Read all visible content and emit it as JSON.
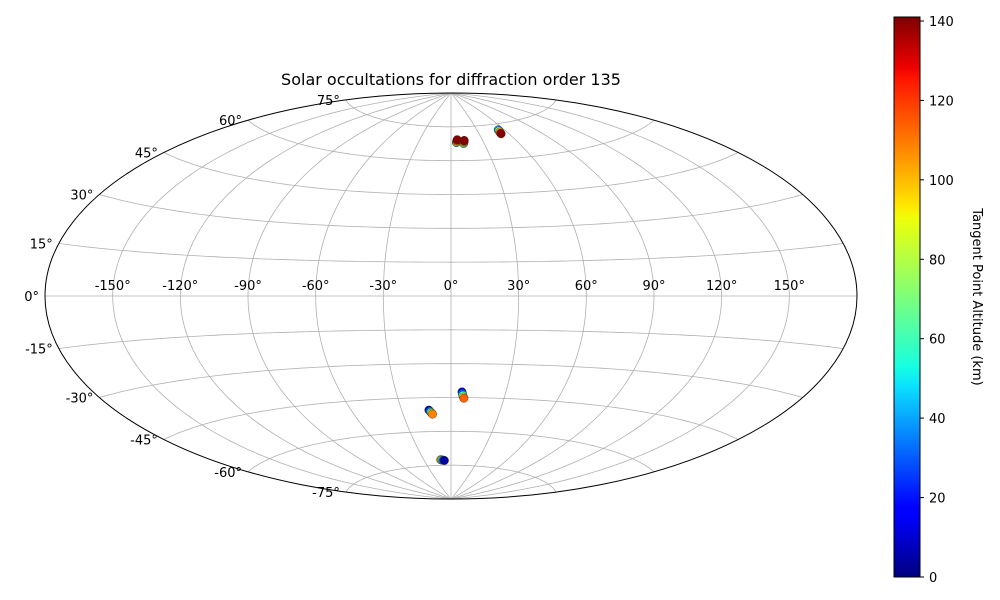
{
  "chart_data": {
    "type": "scatter",
    "projection": "aitoff",
    "title": "Solar occultations for diffraction order 135",
    "grid": true,
    "longitude_ticks": [
      "-150°",
      "-120°",
      "-90°",
      "-60°",
      "-30°",
      "0°",
      "30°",
      "60°",
      "90°",
      "120°",
      "150°"
    ],
    "longitude_tick_values": [
      -150,
      -120,
      -90,
      -60,
      -30,
      0,
      30,
      60,
      90,
      120,
      150
    ],
    "latitude_ticks": [
      "-75°",
      "-60°",
      "-45°",
      "-30°",
      "-15°",
      "0°",
      "15°",
      "30°",
      "45°",
      "60°",
      "75°"
    ],
    "latitude_tick_values": [
      -75,
      -60,
      -45,
      -30,
      -15,
      0,
      15,
      30,
      45,
      60,
      75
    ],
    "colorbar": {
      "label": "Tangent Point Altitude (km)",
      "range": [
        0,
        141
      ],
      "ticks": [
        "0",
        "20",
        "40",
        "60",
        "80",
        "100",
        "120",
        "140"
      ],
      "tick_values": [
        0,
        20,
        40,
        60,
        80,
        100,
        120,
        140
      ],
      "colormap": "jet"
    },
    "series": [
      {
        "points": [
          {
            "lon": 5,
            "lat": 68,
            "alt": 60
          },
          {
            "lon": 5.2,
            "lat": 68.2,
            "alt": 80
          },
          {
            "lon": 5.5,
            "lat": 68.6,
            "alt": 105
          },
          {
            "lon": 5.8,
            "lat": 69,
            "alt": 125
          },
          {
            "lon": 6,
            "lat": 69.3,
            "alt": 140
          },
          {
            "lon": 11.5,
            "lat": 67.5,
            "alt": 60
          },
          {
            "lon": 11.8,
            "lat": 67.9,
            "alt": 85
          },
          {
            "lon": 12.1,
            "lat": 68.3,
            "alt": 110
          },
          {
            "lon": 12.4,
            "lat": 68.7,
            "alt": 130
          },
          {
            "lon": 12.6,
            "lat": 68.9,
            "alt": 140
          },
          {
            "lon": 53.5,
            "lat": 72.5,
            "alt": 40
          },
          {
            "lon": 53.2,
            "lat": 72.0,
            "alt": 70
          },
          {
            "lon": 52.9,
            "lat": 71.5,
            "alt": 100
          },
          {
            "lon": 52.5,
            "lat": 71.0,
            "alt": 125
          },
          {
            "lon": 52.3,
            "lat": 70.7,
            "alt": 140
          },
          {
            "lon": 6,
            "lat": -42.5,
            "alt": 5
          },
          {
            "lon": 6.3,
            "lat": -43.2,
            "alt": 30
          },
          {
            "lon": 6.6,
            "lat": -44.0,
            "alt": 60
          },
          {
            "lon": 7.0,
            "lat": -44.8,
            "alt": 90
          },
          {
            "lon": 7.3,
            "lat": -45.3,
            "alt": 110
          },
          {
            "lon": -13.5,
            "lat": -50.5,
            "alt": 5
          },
          {
            "lon": -13.0,
            "lat": -51.0,
            "alt": 30
          },
          {
            "lon": -12.5,
            "lat": -51.5,
            "alt": 60
          },
          {
            "lon": -12.0,
            "lat": -51.9,
            "alt": 90
          },
          {
            "lon": -11.6,
            "lat": -52.3,
            "alt": 105
          },
          {
            "lon": -11.5,
            "lat": -72.5,
            "alt": 105
          },
          {
            "lon": -10.5,
            "lat": -72.6,
            "alt": 80
          },
          {
            "lon": -9.5,
            "lat": -72.7,
            "alt": 50
          },
          {
            "lon": -8.5,
            "lat": -72.8,
            "alt": 25
          },
          {
            "lon": -7.5,
            "lat": -72.9,
            "alt": 5
          }
        ]
      }
    ]
  }
}
